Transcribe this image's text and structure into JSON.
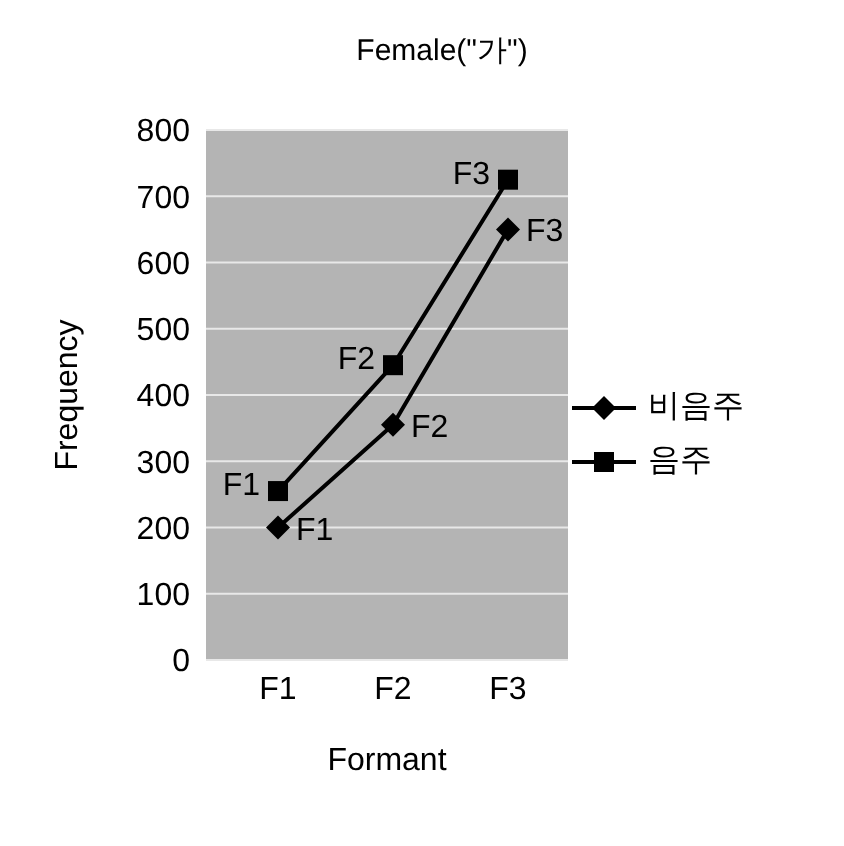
{
  "chart_data": {
    "type": "line",
    "title": "Female(\"가\")",
    "xlabel": "Formant",
    "ylabel": "Frequency",
    "categories": [
      "F1",
      "F2",
      "F3"
    ],
    "series": [
      {
        "name": "비음주",
        "color": "#000000",
        "marker": "diamond",
        "values": [
          200,
          355,
          650
        ],
        "value_labels": [
          "F1",
          "F2",
          "F3"
        ]
      },
      {
        "name": "음주",
        "color": "#000000",
        "marker": "square",
        "values": [
          255,
          445,
          725
        ],
        "value_labels": [
          "F1",
          "F2",
          "F3"
        ]
      }
    ],
    "ylim": [
      0,
      800
    ],
    "yticks": [
      0,
      100,
      200,
      300,
      400,
      500,
      600,
      700,
      800
    ],
    "grid": "y",
    "legend": "right"
  }
}
